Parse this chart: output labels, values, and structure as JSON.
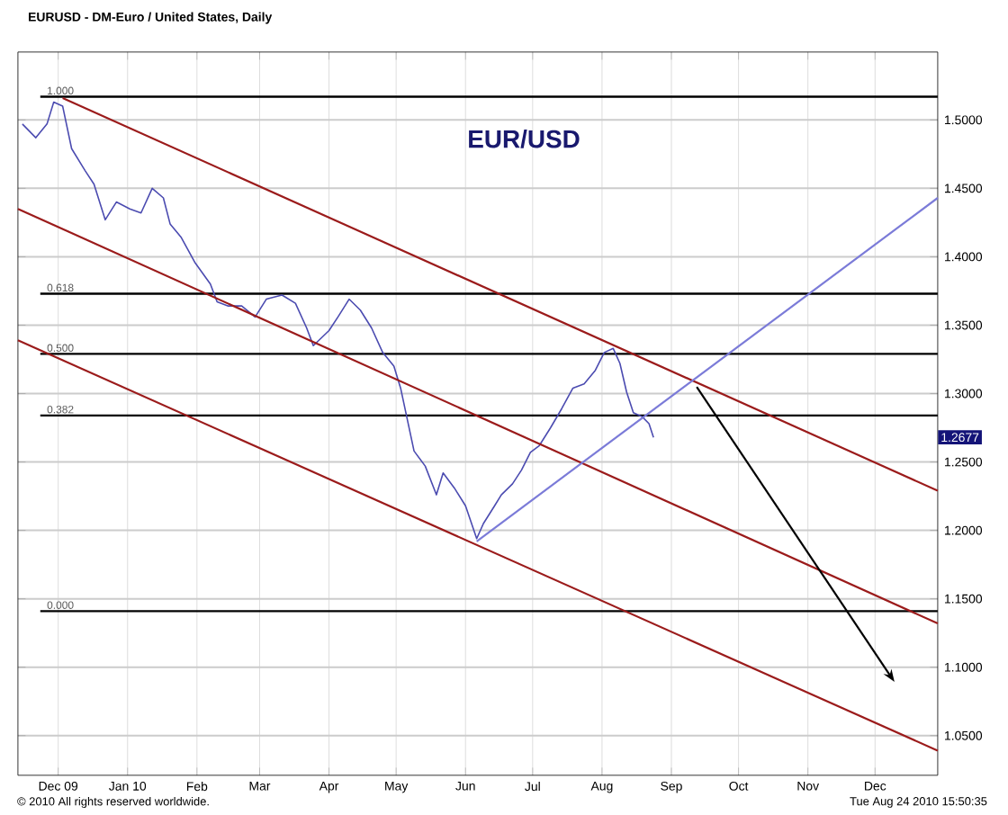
{
  "chart_data": {
    "type": "line",
    "title": "EURUSD - DM-Euro / United States, Daily",
    "annotations": [
      "EUR/USD",
      "1.2677",
      "© 2010 All rights reserved worldwide.",
      "Tue Aug 24 2010 15:50:35",
      {
        "text": "1.000",
        "x": "2009-11-25",
        "y": 1.517
      },
      {
        "text": "0.618",
        "x": "2009-11-25",
        "y": 1.373
      },
      {
        "text": "0.500",
        "x": "2009-11-25",
        "y": 1.329
      },
      {
        "text": "0.382",
        "x": "2009-11-25",
        "y": 1.284
      },
      {
        "text": "0.000",
        "x": "2009-11-25",
        "y": 1.141
      }
    ],
    "xlim": [
      "2009-11-13",
      "2010-12-29"
    ],
    "xticks": [
      {
        "value": "2009-12-01",
        "label": "Dec 09"
      },
      {
        "value": "2010-01-01",
        "label": "Jan 10"
      },
      {
        "value": "2010-02-01",
        "label": "Feb"
      },
      {
        "value": "2010-03-01",
        "label": "Mar"
      },
      {
        "value": "2010-04-01",
        "label": "Apr"
      },
      {
        "value": "2010-05-01",
        "label": "May"
      },
      {
        "value": "2010-06-01",
        "label": "Jun"
      },
      {
        "value": "2010-07-01",
        "label": "Jul"
      },
      {
        "value": "2010-08-01",
        "label": "Aug"
      },
      {
        "value": "2010-09-01",
        "label": "Sep"
      },
      {
        "value": "2010-10-01",
        "label": "Oct"
      },
      {
        "value": "2010-11-01",
        "label": "Nov"
      },
      {
        "value": "2010-12-01",
        "label": "Dec"
      }
    ],
    "ylim": [
      1.021,
      1.5496
    ],
    "yticks": [
      {
        "value": 1.05,
        "label": "1.0500"
      },
      {
        "value": 1.1,
        "label": "1.1000"
      },
      {
        "value": 1.15,
        "label": "1.1500"
      },
      {
        "value": 1.2,
        "label": "1.2000"
      },
      {
        "value": 1.25,
        "label": "1.2500"
      },
      {
        "value": 1.3,
        "label": "1.3000"
      },
      {
        "value": 1.35,
        "label": "1.3500"
      },
      {
        "value": 1.4,
        "label": "1.4000"
      },
      {
        "value": 1.45,
        "label": "1.4500"
      },
      {
        "value": 1.5,
        "label": "1.5000"
      }
    ],
    "grid": true,
    "marker": "none",
    "ref_lines": [
      {
        "axis": "y",
        "value": 1.517,
        "color": "#000000"
      },
      {
        "axis": "y",
        "value": 1.373,
        "color": "#000000"
      },
      {
        "axis": "y",
        "value": 1.329,
        "color": "#000000"
      },
      {
        "axis": "y",
        "value": 1.284,
        "color": "#000000"
      },
      {
        "axis": "y",
        "value": 1.141,
        "color": "#000000"
      }
    ],
    "series": [
      {
        "color": "#4b4bb0",
        "x": [
          "2009-11-15",
          "2009-11-21",
          "2009-11-26",
          "2009-11-29",
          "2009-12-03",
          "2009-12-07",
          "2009-12-13",
          "2009-12-17",
          "2009-12-22",
          "2009-12-27",
          "2010-01-02",
          "2010-01-07",
          "2010-01-12",
          "2010-01-17",
          "2010-01-20",
          "2010-01-25",
          "2010-01-31",
          "2010-02-07",
          "2010-02-10",
          "2010-02-15",
          "2010-02-21",
          "2010-02-27",
          "2010-03-04",
          "2010-03-11",
          "2010-03-17",
          "2010-03-22",
          "2010-03-25",
          "2010-04-01",
          "2010-04-05",
          "2010-04-10",
          "2010-04-15",
          "2010-04-20",
          "2010-04-25",
          "2010-04-30",
          "2010-05-03",
          "2010-05-06",
          "2010-05-09",
          "2010-05-14",
          "2010-05-19",
          "2010-05-22",
          "2010-05-27",
          "2010-06-01",
          "2010-06-06",
          "2010-06-09",
          "2010-06-14",
          "2010-06-17",
          "2010-06-22",
          "2010-06-26",
          "2010-06-30",
          "2010-07-04",
          "2010-07-09",
          "2010-07-14",
          "2010-07-19",
          "2010-07-24",
          "2010-07-29",
          "2010-08-02",
          "2010-08-06",
          "2010-08-09",
          "2010-08-12",
          "2010-08-15",
          "2010-08-19",
          "2010-08-22",
          "2010-08-24"
        ],
        "values": [
          1.497,
          1.487,
          1.497,
          1.513,
          1.51,
          1.479,
          1.463,
          1.453,
          1.427,
          1.44,
          1.435,
          1.432,
          1.45,
          1.443,
          1.424,
          1.414,
          1.396,
          1.38,
          1.367,
          1.364,
          1.364,
          1.356,
          1.369,
          1.372,
          1.366,
          1.348,
          1.335,
          1.346,
          1.356,
          1.369,
          1.361,
          1.348,
          1.33,
          1.32,
          1.304,
          1.281,
          1.258,
          1.247,
          1.226,
          1.242,
          1.231,
          1.218,
          1.194,
          1.205,
          1.218,
          1.226,
          1.234,
          1.244,
          1.257,
          1.262,
          1.275,
          1.289,
          1.304,
          1.307,
          1.317,
          1.33,
          1.333,
          1.322,
          1.301,
          1.286,
          1.283,
          1.278,
          1.268
        ]
      },
      {
        "color": "#9b1b1b",
        "x": [
          "2009-12-03",
          "2010-12-29"
        ],
        "values": [
          1.516,
          1.229
        ]
      },
      {
        "color": "#9b1b1b",
        "x": [
          "2009-11-13",
          "2010-12-29"
        ],
        "values": [
          1.435,
          1.132
        ]
      },
      {
        "color": "#9b1b1b",
        "x": [
          "2009-11-13",
          "2010-12-29"
        ],
        "values": [
          1.339,
          1.039
        ]
      },
      {
        "color": "#7b7bd8",
        "x": [
          "2010-06-06",
          "2010-12-29"
        ],
        "values": [
          1.192,
          1.443
        ]
      }
    ]
  }
}
